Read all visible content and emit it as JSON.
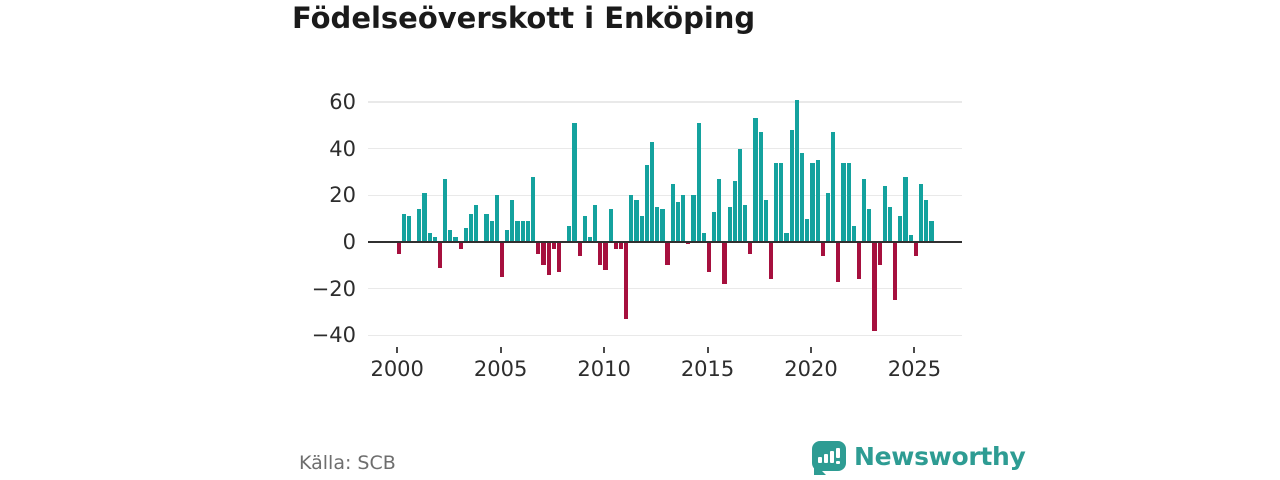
{
  "title": "Födelseöverskott i Enköping",
  "source": "Källa: SCB",
  "logo": {
    "text": "Newsworthy"
  },
  "colors": {
    "positive": "#14A29E",
    "negative": "#A6103E",
    "axis": "#303030",
    "grid": "#E9E9E9",
    "tick": "#4A4A4A",
    "label": "#2D2D2D",
    "title": "#1A1A1A",
    "source_text": "#6E6E6E",
    "brand": "#2E9C93",
    "background": "#FFFFFF"
  },
  "chart_data": {
    "type": "bar",
    "title": "Födelseöverskott i Enköping",
    "frequency": "quarterly",
    "start_year": 2000,
    "points_per_year": 4,
    "x_ticks": [
      2000,
      2005,
      2010,
      2015,
      2020,
      2025
    ],
    "y_ticks": [
      60,
      40,
      20,
      0,
      -20,
      -40
    ],
    "ylim": [
      -42,
      64
    ],
    "grid": true,
    "legend": false,
    "values": [
      -5,
      12,
      11,
      0,
      14,
      21,
      4,
      2,
      -11,
      27,
      5,
      2,
      -3,
      6,
      12,
      16,
      0,
      12,
      9,
      20,
      -15,
      5,
      18,
      9,
      9,
      9,
      28,
      -5,
      -10,
      -14,
      -3,
      -13,
      0,
      7,
      51,
      -6,
      11,
      2,
      16,
      -10,
      -12,
      14,
      -3,
      -3,
      -33,
      20,
      18,
      11,
      33,
      43,
      15,
      14,
      -10,
      25,
      17,
      20,
      -1,
      20,
      51,
      4,
      -13,
      13,
      27,
      -18,
      15,
      26,
      40,
      16,
      -5,
      53,
      47,
      18,
      -16,
      34,
      34,
      4,
      48,
      61,
      38,
      10,
      34,
      35,
      -6,
      21,
      47,
      -17,
      34,
      34,
      7,
      -16,
      27,
      14,
      -38,
      -10,
      24,
      15,
      -25,
      11,
      28,
      3,
      -6,
      25,
      18,
      9
    ]
  }
}
